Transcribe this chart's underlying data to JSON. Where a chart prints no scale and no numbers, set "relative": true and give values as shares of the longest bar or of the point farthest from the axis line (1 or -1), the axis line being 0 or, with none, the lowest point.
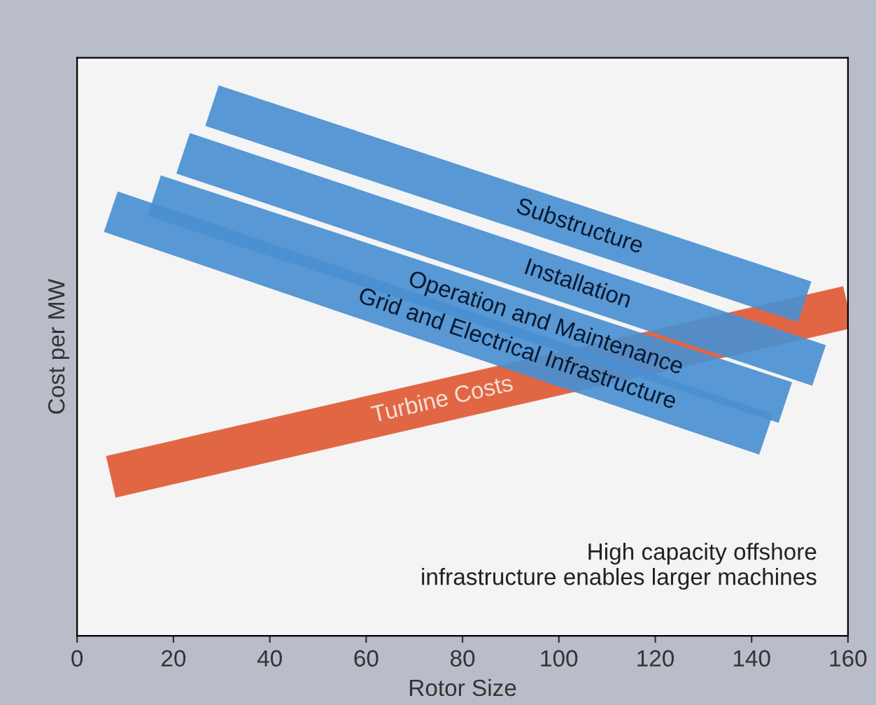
{
  "chart_data": {
    "type": "line",
    "relative": true,
    "xlabel": "Rotor Size",
    "ylabel": "Cost per MW",
    "xlim": [
      0,
      160
    ],
    "xticks": [
      0,
      20,
      40,
      60,
      80,
      100,
      120,
      140,
      160
    ],
    "tick_labels": "x",
    "grid": false,
    "legend": false,
    "line_style": "solid",
    "marker": "none",
    "series": [
      {
        "name": "Turbine Costs",
        "color": "#de5a34",
        "x": [
          7,
          160
        ],
        "values": [
          0.3,
          0.62
        ]
      },
      {
        "name": "Substructure",
        "color": "#4a8fd0",
        "x": [
          28,
          151
        ],
        "values": [
          1.0,
          0.63
        ]
      },
      {
        "name": "Installation",
        "color": "#4a8fd0",
        "x": [
          22,
          154
        ],
        "values": [
          0.91,
          0.51
        ]
      },
      {
        "name": "Operation and Maintenance",
        "color": "#4a8fd0",
        "x": [
          16,
          147
        ],
        "values": [
          0.83,
          0.44
        ]
      },
      {
        "name": "Grid and Electrical Infrastructure",
        "color": "#4a8fd0",
        "x": [
          7,
          143
        ],
        "values": [
          0.8,
          0.38
        ]
      }
    ],
    "annotations": [
      "High capacity offshore\ninfrastructure enables larger machines"
    ]
  }
}
